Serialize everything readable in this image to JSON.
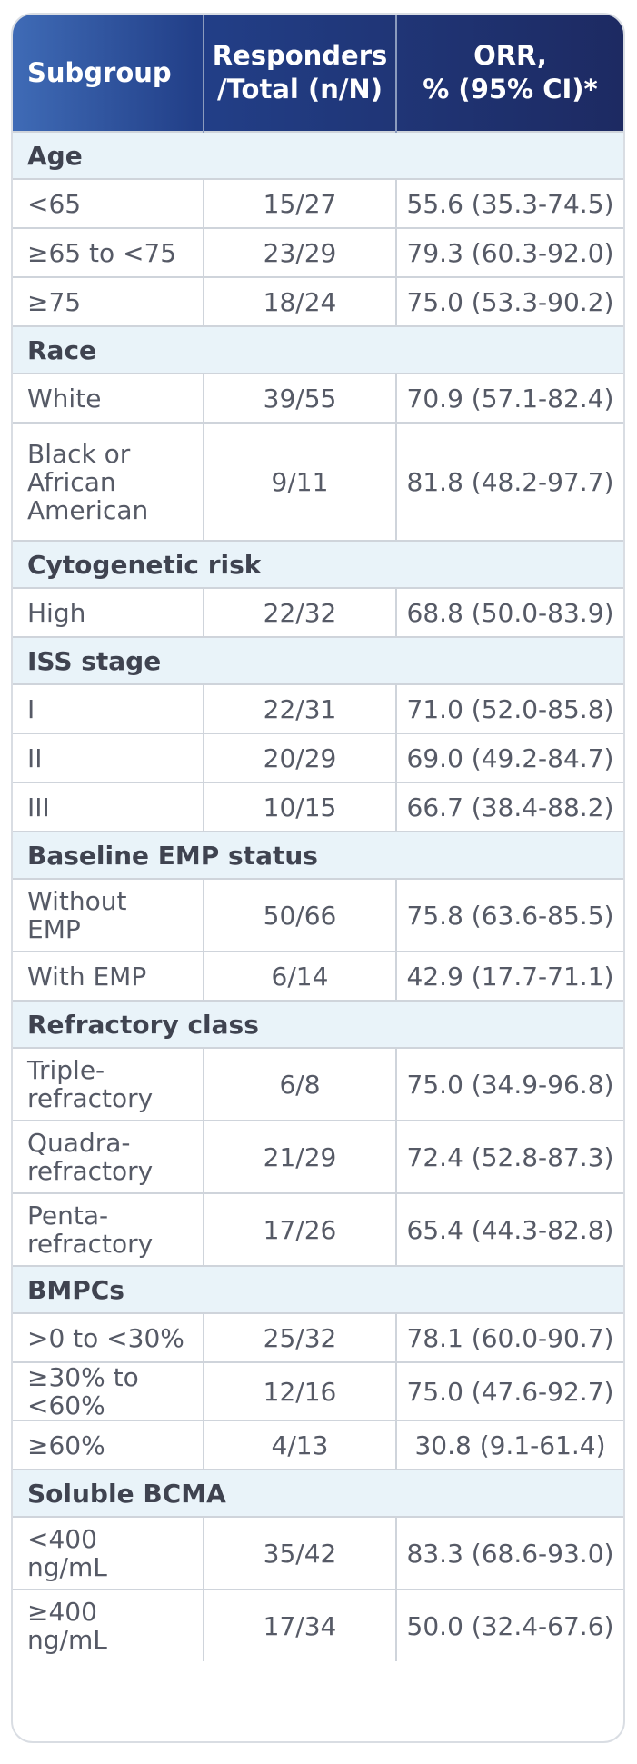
{
  "header": {
    "subgroup": "Subgroup",
    "responders_line1": "Responders",
    "responders_line2": "/Total (n/N)",
    "orr_line1": "ORR,",
    "orr_line2": "% (95% CI)*"
  },
  "sections": [
    {
      "title": "Age",
      "rows": [
        {
          "label": [
            "<65"
          ],
          "n": "15/27",
          "orr": "55.6 (35.3-74.5)"
        },
        {
          "label": [
            "≥65 to <75"
          ],
          "n": "23/29",
          "orr": "79.3 (60.3-92.0)"
        },
        {
          "label": [
            "≥75"
          ],
          "n": "18/24",
          "orr": "75.0 (53.3-90.2)"
        }
      ]
    },
    {
      "title": "Race",
      "rows": [
        {
          "label": [
            "White"
          ],
          "n": "39/55",
          "orr": "70.9 (57.1-82.4)"
        },
        {
          "label": [
            "Black or",
            "African",
            "American"
          ],
          "n": "9/11",
          "orr": "81.8 (48.2-97.7)"
        }
      ]
    },
    {
      "title": "Cytogenetic risk",
      "rows": [
        {
          "label": [
            "High"
          ],
          "n": "22/32",
          "orr": "68.8 (50.0-83.9)"
        }
      ]
    },
    {
      "title": "ISS stage",
      "rows": [
        {
          "label": [
            "I"
          ],
          "n": "22/31",
          "orr": "71.0 (52.0-85.8)"
        },
        {
          "label": [
            "II"
          ],
          "n": "20/29",
          "orr": "69.0 (49.2-84.7)"
        },
        {
          "label": [
            "III"
          ],
          "n": "10/15",
          "orr": "66.7 (38.4-88.2)"
        }
      ]
    },
    {
      "title": "Baseline EMP status",
      "rows": [
        {
          "label": [
            "Without",
            "EMP"
          ],
          "n": "50/66",
          "orr": "75.8 (63.6-85.5)"
        },
        {
          "label": [
            "With EMP"
          ],
          "n": "6/14",
          "orr": "42.9 (17.7-71.1)"
        }
      ]
    },
    {
      "title": "Refractory class",
      "rows": [
        {
          "label": [
            "Triple-",
            "refractory"
          ],
          "n": "6/8",
          "orr": "75.0 (34.9-96.8)"
        },
        {
          "label": [
            "Quadra-",
            "refractory"
          ],
          "n": "21/29",
          "orr": "72.4 (52.8-87.3)"
        },
        {
          "label": [
            "Penta-",
            "refractory"
          ],
          "n": "17/26",
          "orr": "65.4 (44.3-82.8)"
        }
      ]
    },
    {
      "title": "BMPCs",
      "rows": [
        {
          "label": [
            ">0 to <30%"
          ],
          "n": "25/32",
          "orr": "78.1 (60.0-90.7)"
        },
        {
          "label": [
            "≥30% to <60%"
          ],
          "n": "12/16",
          "orr": "75.0 (47.6-92.7)"
        },
        {
          "label": [
            "≥60%"
          ],
          "n": "4/13",
          "orr": "30.8 (9.1-61.4)"
        }
      ]
    },
    {
      "title": "Soluble BCMA",
      "rows": [
        {
          "label": [
            "<400",
            "ng/mL"
          ],
          "n": "35/42",
          "orr": "83.3 (68.6-93.0)"
        },
        {
          "label": [
            "≥400",
            "ng/mL"
          ],
          "n": "17/34",
          "orr": "50.0 (32.4-67.6)"
        }
      ]
    }
  ]
}
